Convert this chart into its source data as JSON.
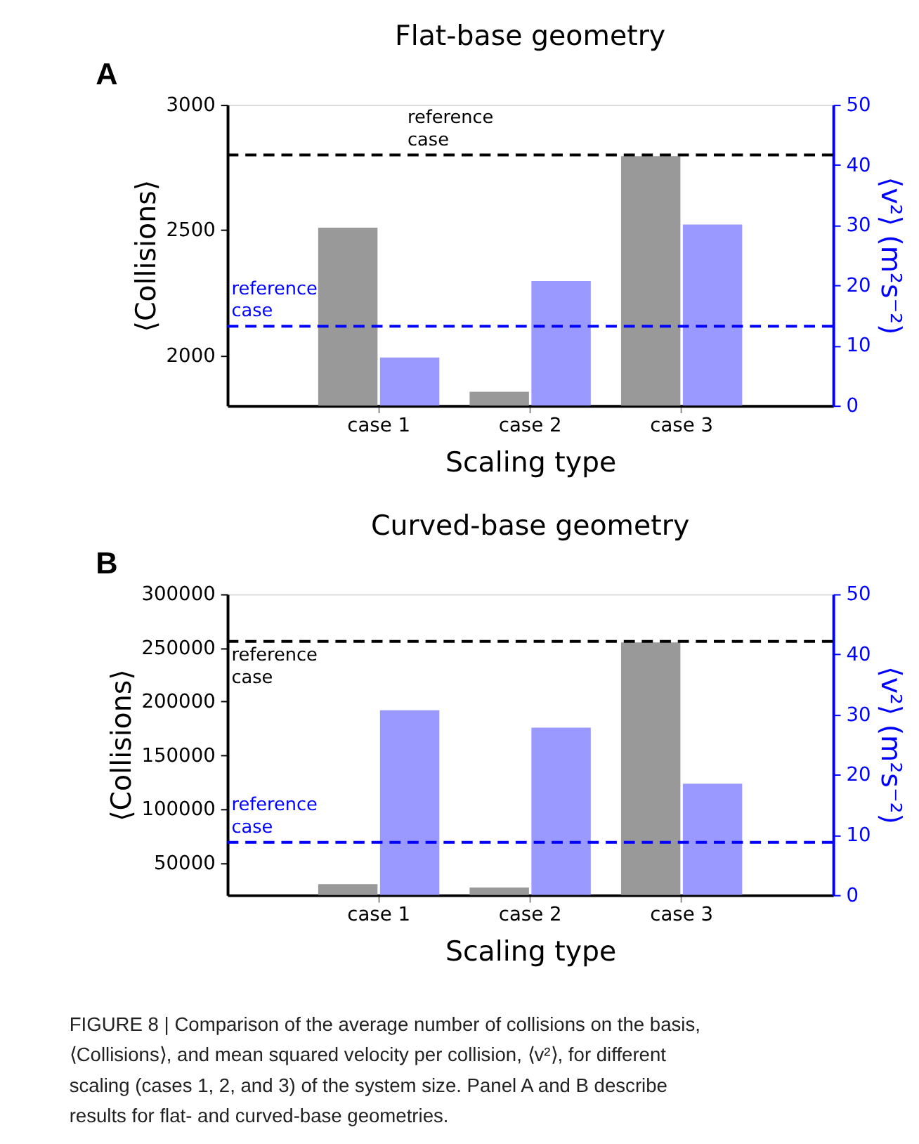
{
  "chart_data": [
    {
      "type": "bar",
      "title": "Flat-base geometry",
      "xlabel": "Scaling type",
      "ylabel": "⟨Collisions⟩",
      "y2label": "⟨v²⟩ (m²s⁻²)",
      "annotations": [
        "A"
      ],
      "categories": [
        "case 1",
        "case 2",
        "case 3"
      ],
      "series": [
        {
          "color": "#999999",
          "values": [
            2510,
            1855,
            2795
          ]
        },
        {
          "color": "#9999ff",
          "axis": "y2",
          "values": [
            8.0,
            20.7,
            30.1
          ]
        }
      ],
      "ylim": [
        1800,
        3000
      ],
      "yticks": [
        2000,
        2500,
        3000
      ],
      "y2lim": [
        0,
        50
      ],
      "y2ticks": [
        0,
        10,
        20,
        30,
        40,
        50
      ],
      "ref_lines": [
        {
          "axis": "y",
          "value": 2800,
          "label": "reference case",
          "color": "#000000",
          "line_style": "dashed"
        },
        {
          "axis": "y2",
          "value": 13.2,
          "label": "reference case",
          "color": "#0000ff",
          "line_style": "dashed"
        }
      ],
      "grid": false
    },
    {
      "type": "bar",
      "title": "Curved-base geometry",
      "xlabel": "Scaling type",
      "ylabel": "⟨Collisions⟩",
      "y2label": "⟨v²⟩ (m²s⁻²)",
      "annotations": [
        "B",
        "FIGURE 8 | Comparison of the average number of collisions on the basis, ⟨Collisions⟩, and mean squared velocity per collision, ⟨v²⟩, for different scaling (cases 1, 2, and 3) of the system size. Panel A and B describe results for flat- and curved-base geometries."
      ],
      "categories": [
        "case 1",
        "case 2",
        "case 3"
      ],
      "series": [
        {
          "color": "#999999",
          "values": [
            30000,
            27000,
            255000
          ]
        },
        {
          "color": "#9999ff",
          "axis": "y2",
          "values": [
            30.7,
            27.8,
            18.5
          ]
        }
      ],
      "ylim": [
        20000,
        300000
      ],
      "yticks": [
        50000,
        100000,
        150000,
        200000,
        250000,
        300000
      ],
      "y2lim": [
        0,
        50
      ],
      "y2ticks": [
        0,
        10,
        20,
        30,
        40,
        50
      ],
      "ref_lines": [
        {
          "axis": "y",
          "value": 256000,
          "label": "reference case",
          "color": "#000000",
          "line_style": "dashed"
        },
        {
          "axis": "y2",
          "value": 8.75,
          "label": "reference case",
          "color": "#0000ff",
          "line_style": "dashed"
        }
      ],
      "grid": false
    }
  ]
}
